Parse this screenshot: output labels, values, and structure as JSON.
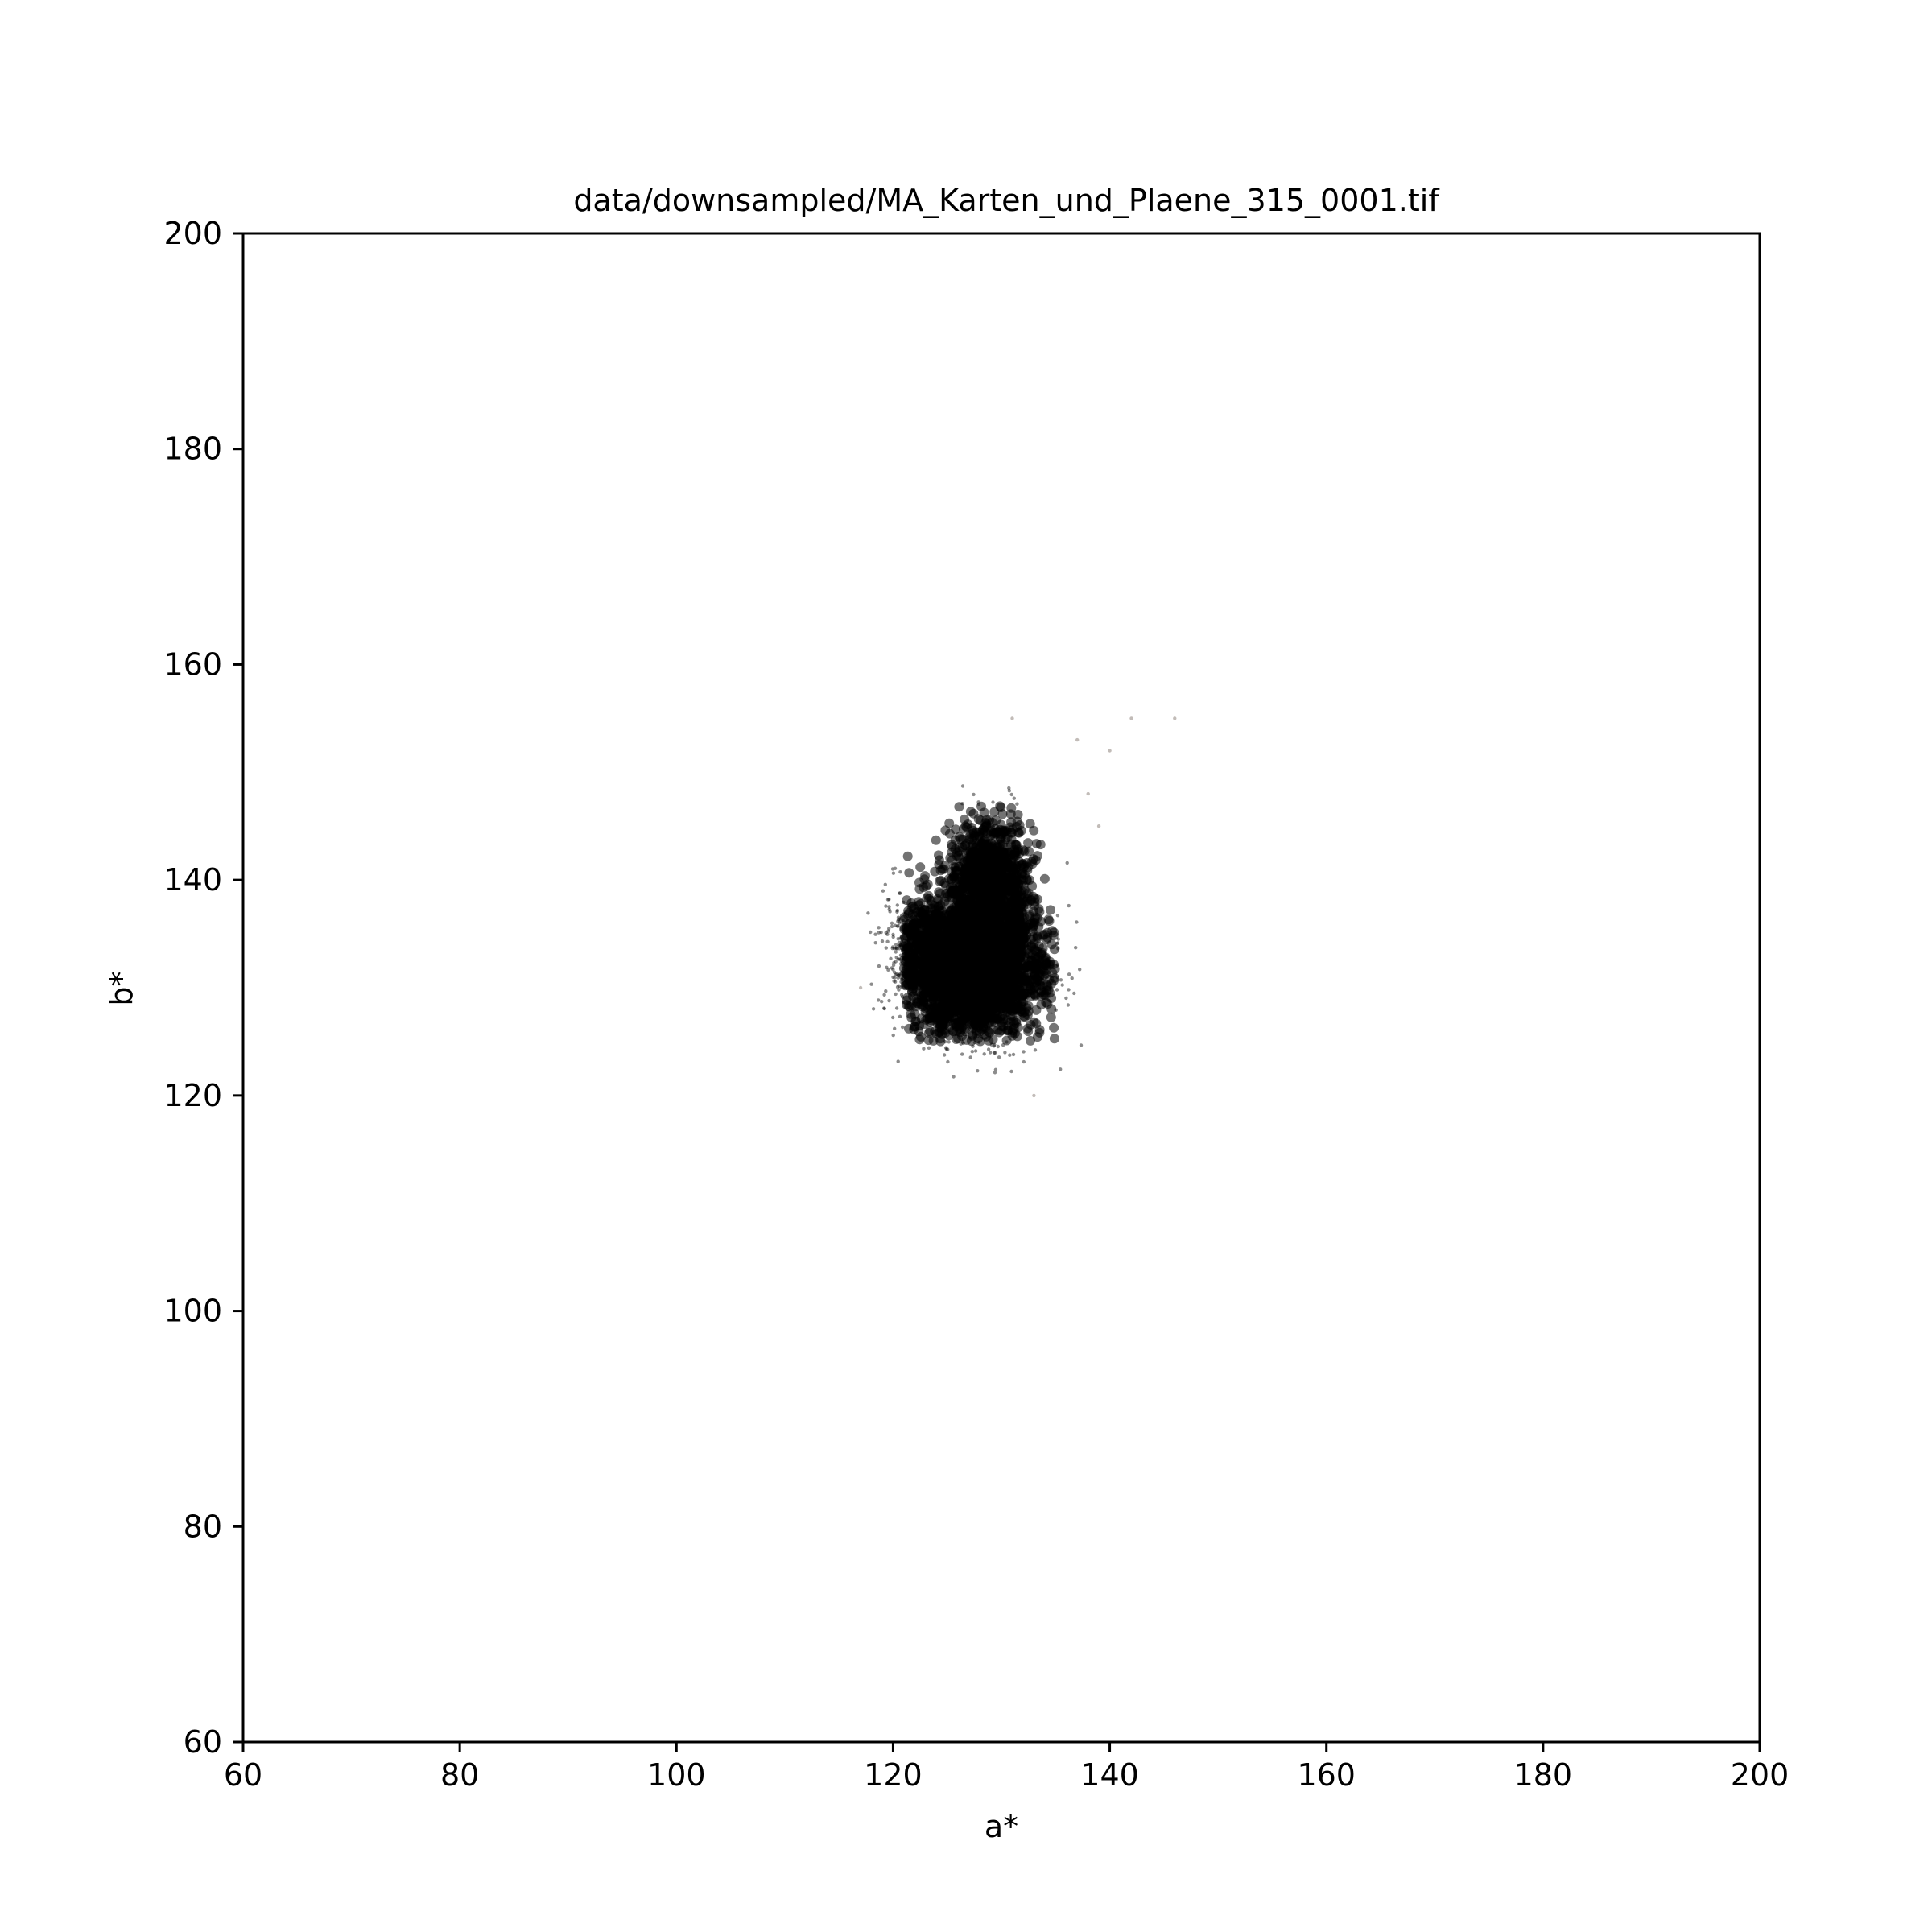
{
  "chart_data": {
    "type": "scatter",
    "title": "data/downsampled/MA_Karten_und_Plaene_315_0001.tif",
    "xlabel": "a*",
    "ylabel": "b*",
    "xlim": [
      60,
      200
    ],
    "ylim": [
      60,
      200
    ],
    "xticks": [
      60,
      80,
      100,
      120,
      140,
      160,
      180,
      200
    ],
    "yticks": [
      60,
      80,
      100,
      120,
      140,
      160,
      180,
      200
    ],
    "grid": false,
    "legend": "none",
    "point_colors": [
      "#8d8a6d",
      "#8a7f5c",
      "#9a9089",
      "#7e8a78",
      "#8a8276",
      "#a59c95",
      "#6f7a6e"
    ],
    "cluster": {
      "a_center": 128,
      "b_center": 133,
      "a_range": [
        117,
        146
      ],
      "b_range": [
        120,
        155
      ],
      "core_a_range": [
        121,
        135
      ],
      "core_b_range": [
        125,
        147
      ]
    },
    "outliers": [
      {
        "x": 142,
        "y": 155
      },
      {
        "x": 146,
        "y": 155
      },
      {
        "x": 140,
        "y": 152
      },
      {
        "x": 138,
        "y": 148
      },
      {
        "x": 139,
        "y": 145
      },
      {
        "x": 117,
        "y": 130
      },
      {
        "x": 133,
        "y": 120
      },
      {
        "x": 137,
        "y": 153
      },
      {
        "x": 131,
        "y": 155
      }
    ]
  }
}
